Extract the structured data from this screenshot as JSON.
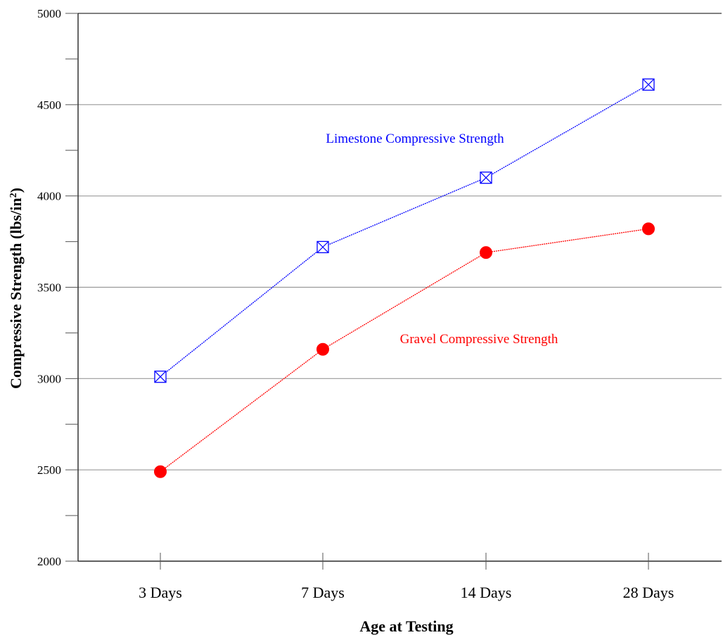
{
  "chart_data": {
    "type": "line",
    "categories": [
      "3 Days",
      "7 Days",
      "14 Days",
      "28 Days"
    ],
    "series": [
      {
        "name": "Limestone Compressive Strength",
        "values": [
          3010,
          3720,
          4100,
          4610
        ],
        "color": "#0000ff",
        "marker": "square-x"
      },
      {
        "name": "Gravel Compressive Strength",
        "values": [
          2490,
          3160,
          3690,
          3820
        ],
        "color": "#ff0000",
        "marker": "filled-circle"
      }
    ],
    "xlabel": "Age at Testing",
    "ylabel": "Compressive Strength (lbs/in",
    "ylabel_superscript": "2",
    "ylabel_suffix": ")",
    "ylim": [
      2000,
      5000
    ],
    "yticks": [
      2000,
      2500,
      3000,
      3500,
      4000,
      4500,
      5000
    ],
    "grid": true,
    "legend": "inline labels"
  }
}
